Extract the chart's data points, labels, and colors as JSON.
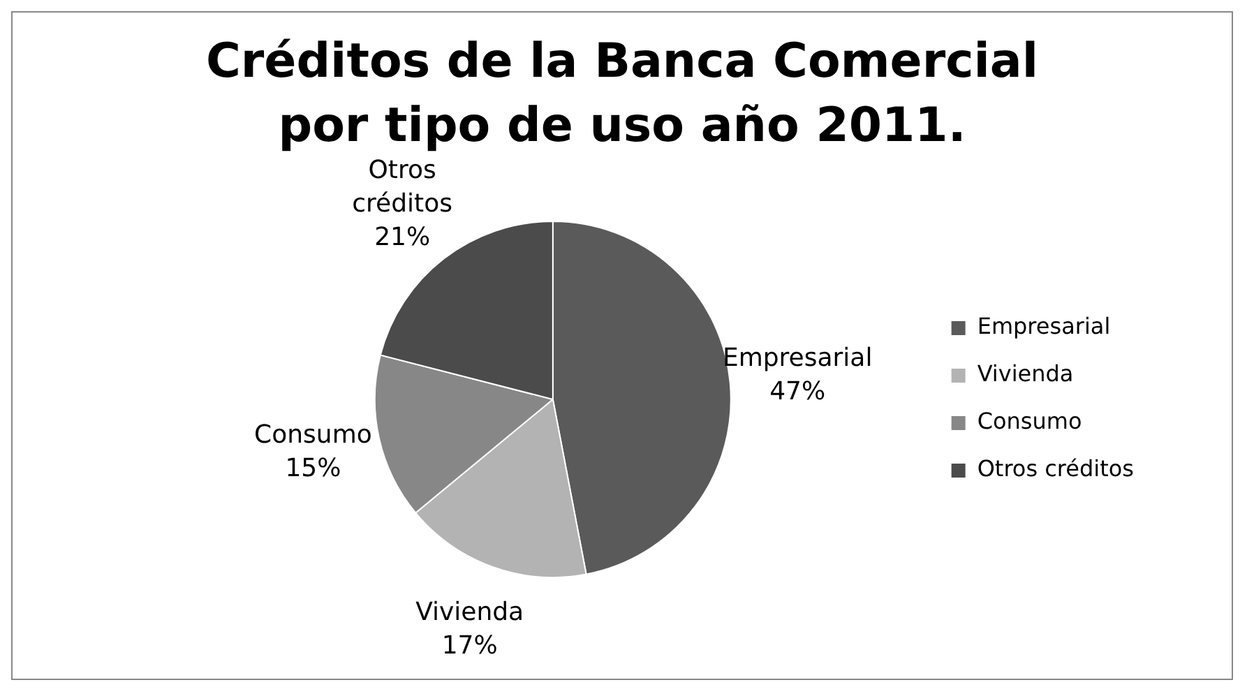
{
  "chart_data": {
    "type": "pie",
    "title": "Créditos de la Banca Comercial por tipo de uso año 2011.",
    "categories": [
      "Empresarial",
      "Vivienda",
      "Consumo",
      "Otros créditos"
    ],
    "values": [
      47,
      17,
      15,
      21
    ],
    "value_labels": [
      "47%",
      "17%",
      "15%",
      "21%"
    ],
    "colors": [
      "#5a5a5a",
      "#b3b3b3",
      "#878787",
      "#4b4b4b"
    ],
    "legend": "right"
  }
}
